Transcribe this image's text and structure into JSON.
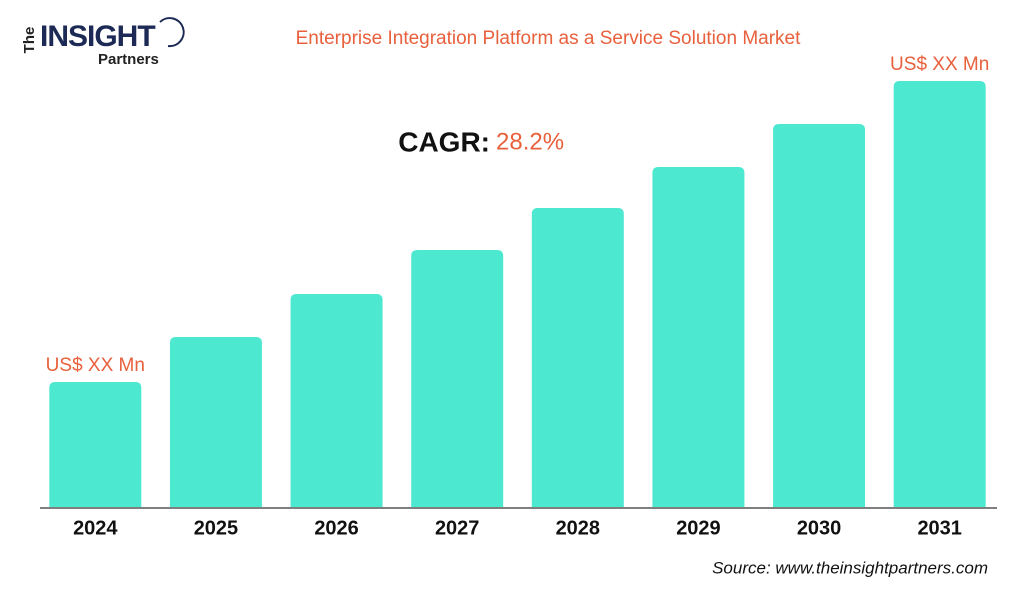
{
  "logo": {
    "prefix": "The",
    "name": "INSIGHT",
    "suffix": "Partners"
  },
  "chart_data": {
    "type": "bar",
    "title": "Enterprise Integration Platform as a Service Solution Market",
    "categories": [
      "2024",
      "2025",
      "2026",
      "2027",
      "2028",
      "2029",
      "2030",
      "2031"
    ],
    "values": [
      125,
      170,
      213,
      257,
      299,
      340,
      383,
      426
    ],
    "value_labels": [
      "US$ XX Mn",
      null,
      null,
      null,
      null,
      null,
      null,
      "US$ XX Mn"
    ],
    "color": "#4de8d0",
    "annotation": {
      "label": "CAGR:",
      "value": "28.2%"
    },
    "source": "Source: www.theinsightpartners.com"
  }
}
